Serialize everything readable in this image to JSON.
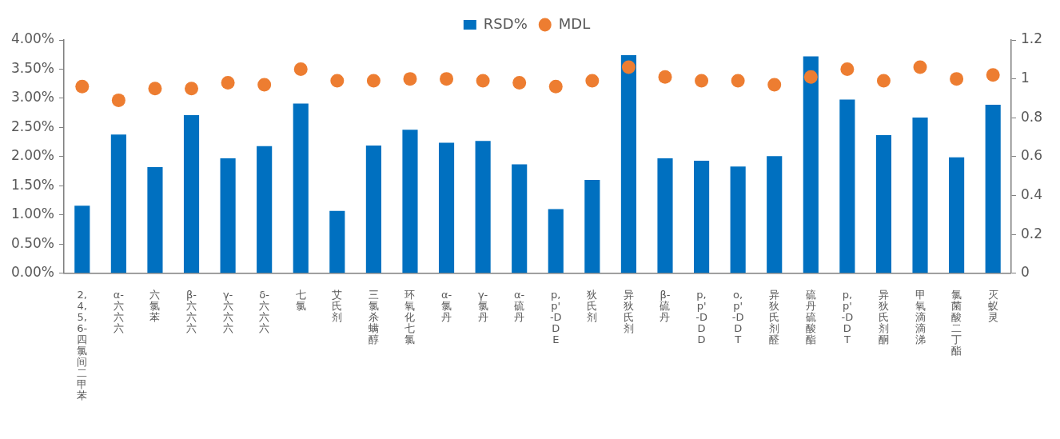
{
  "chart_data": {
    "type": "bar",
    "categories": [
      "2,4,5,6-四氯间二甲苯",
      "α-六六六",
      "六氯苯",
      "β-六六六",
      "γ-六六六",
      "δ-六六六",
      "七氯",
      "艾氏剂",
      "三氯杀螨醇",
      "环氧化七氯",
      "α-氯丹",
      "γ-氯丹",
      "α-硫丹",
      "p,p'-DDE",
      "狄氏剂",
      "异狄氏剂",
      "β-硫丹",
      "p,p'-DDD",
      "o,p'-DDT",
      "异狄氏剂醛",
      "硫丹硫酸酯",
      "p,p'-DDT",
      "异狄氏剂酮",
      "甲氧滴滴涕",
      "氯菌酸二丁酯",
      "灭蚁灵"
    ],
    "series": [
      {
        "name": "RSD%",
        "color": "#0070c0",
        "values": [
          1.16,
          2.38,
          1.82,
          2.71,
          1.97,
          2.18,
          2.91,
          1.07,
          2.19,
          2.46,
          2.24,
          2.27,
          1.87,
          1.1,
          1.6,
          3.74,
          1.97,
          1.93,
          1.83,
          2.01,
          3.72,
          2.98,
          2.37,
          2.67,
          1.99,
          2.89
        ]
      },
      {
        "name": "MDL",
        "type": "scatter",
        "axis": "y2",
        "color": "#ed7d31",
        "values": [
          0.96,
          0.89,
          0.95,
          0.95,
          0.98,
          0.97,
          1.05,
          0.99,
          0.99,
          1.0,
          1.0,
          0.99,
          0.98,
          0.96,
          0.99,
          1.06,
          1.01,
          0.99,
          0.99,
          0.97,
          1.01,
          1.05,
          0.99,
          1.06,
          1.0,
          1.02
        ]
      }
    ],
    "ylim": [
      0,
      4
    ],
    "yticks": [
      {
        "value": 0,
        "label": "0.00%"
      },
      {
        "value": 0.5,
        "label": "0.50%"
      },
      {
        "value": 1,
        "label": "1.00%"
      },
      {
        "value": 1.5,
        "label": "1.50%"
      },
      {
        "value": 2,
        "label": "2.00%"
      },
      {
        "value": 2.5,
        "label": "2.50%"
      },
      {
        "value": 3,
        "label": "3.00%"
      },
      {
        "value": 3.5,
        "label": "3.50%"
      },
      {
        "value": 4,
        "label": "4.00%"
      }
    ],
    "y2lim": [
      0,
      1.2
    ],
    "y2ticks": [
      0,
      0.2,
      0.4,
      0.6,
      0.8,
      1,
      1.2
    ],
    "legend": "top",
    "marker": "circle"
  }
}
